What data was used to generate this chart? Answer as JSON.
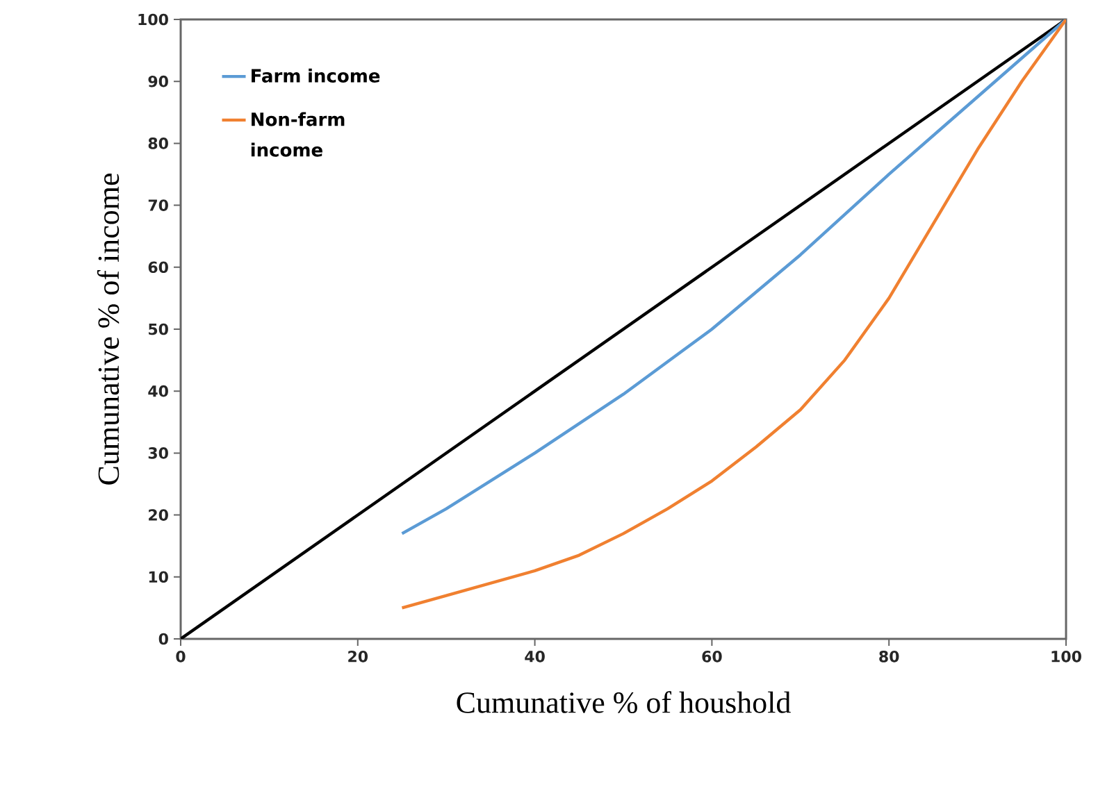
{
  "chart_data": {
    "type": "line",
    "xlabel": "Cumunative % of houshold",
    "ylabel": "Cumunative % of income",
    "xlim": [
      0,
      100
    ],
    "ylim": [
      0,
      100
    ],
    "xticks": [
      0,
      20,
      40,
      60,
      80,
      100
    ],
    "yticks": [
      0,
      10,
      20,
      30,
      40,
      50,
      60,
      70,
      80,
      90,
      100
    ],
    "grid": false,
    "legend": "top left",
    "marker": "none",
    "line_style": "solid",
    "series": [
      {
        "color": "#000000",
        "x": [
          0,
          100
        ],
        "values": [
          0,
          100
        ]
      },
      {
        "name": "Farm income",
        "color": "#5b9bd5",
        "x": [
          25,
          30,
          40,
          50,
          60,
          70,
          80,
          90,
          100
        ],
        "values": [
          17,
          21,
          30,
          39.5,
          50,
          62,
          75,
          87.5,
          100
        ]
      },
      {
        "name": "Non-farm income",
        "color": "#f08030",
        "x": [
          25,
          30,
          40,
          45,
          50,
          55,
          60,
          65,
          70,
          75,
          80,
          85,
          90,
          95,
          100
        ],
        "values": [
          5,
          7,
          11,
          13.5,
          17,
          21,
          25.5,
          31,
          37,
          45,
          55,
          67,
          79,
          90,
          100
        ]
      }
    ]
  }
}
